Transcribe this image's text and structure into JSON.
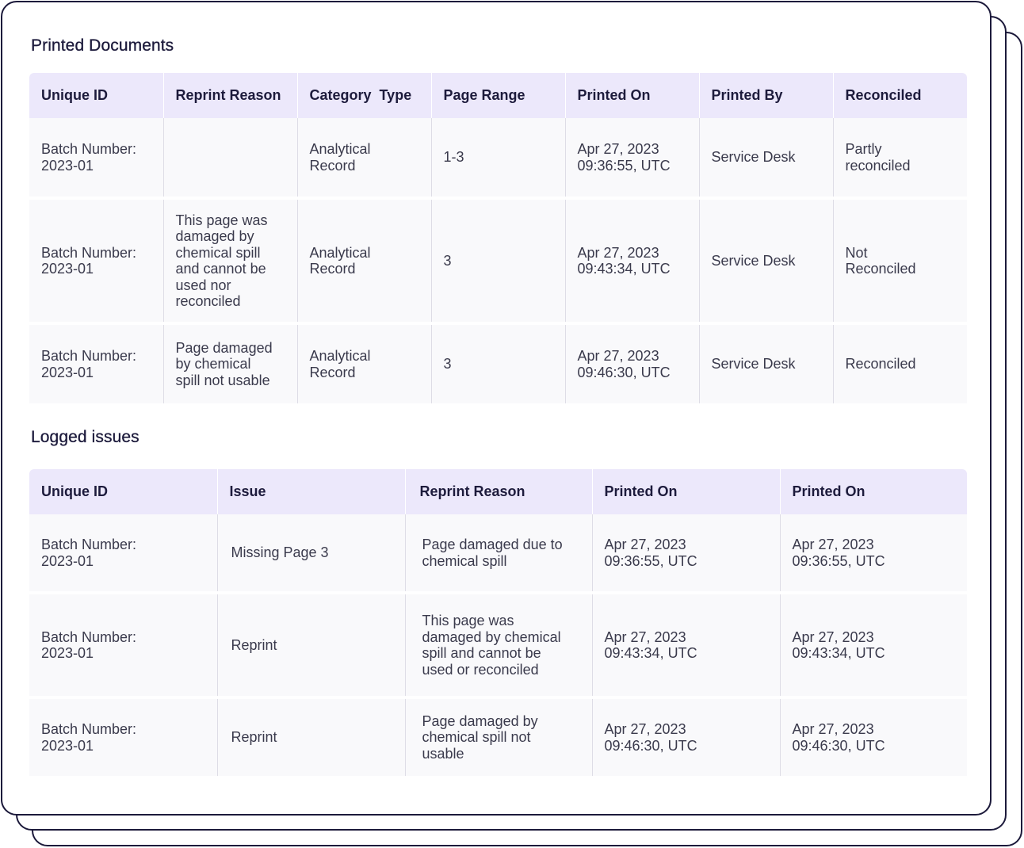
{
  "printed_documents": {
    "title": "Printed Documents",
    "columns": [
      "Unique ID",
      "Reprint Reason",
      "Category  Type",
      "Page Range",
      "Printed On",
      "Printed By",
      "Reconciled"
    ],
    "rows": [
      {
        "unique_id": [
          "Batch Number:",
          "2023-01"
        ],
        "reprint_reason": [],
        "category_type": [
          "Analytical",
          "Record"
        ],
        "page_range": "1-3",
        "printed_on": [
          "Apr 27, 2023",
          "09:36:55, UTC"
        ],
        "printed_by": "Service Desk",
        "reconciled": [
          "Partly",
          "reconciled"
        ]
      },
      {
        "unique_id": [
          "Batch Number:",
          "2023-01"
        ],
        "reprint_reason": [
          "This page was",
          "damaged by",
          "chemical spill",
          "and cannot be",
          "used nor",
          "reconciled"
        ],
        "category_type": [
          "Analytical",
          "Record"
        ],
        "page_range": "3",
        "printed_on": [
          "Apr 27, 2023",
          "09:43:34, UTC"
        ],
        "printed_by": "Service Desk",
        "reconciled": [
          "Not",
          "Reconciled"
        ]
      },
      {
        "unique_id": [
          "Batch Number:",
          "2023-01"
        ],
        "reprint_reason": [
          "Page damaged",
          "by chemical",
          "spill not usable"
        ],
        "category_type": [
          "Analytical",
          "Record"
        ],
        "page_range": "3",
        "printed_on": [
          "Apr 27, 2023",
          "09:46:30, UTC"
        ],
        "printed_by": "Service Desk",
        "reconciled": [
          "Reconciled"
        ]
      }
    ]
  },
  "logged_issues": {
    "title": "Logged issues",
    "columns": [
      "Unique ID",
      "Issue",
      "Reprint Reason",
      "Printed On",
      "Printed On"
    ],
    "rows": [
      {
        "unique_id": [
          "Batch Number:",
          "2023-01"
        ],
        "issue": "Missing Page 3",
        "reprint_reason": [
          "Page damaged due to",
          "chemical spill"
        ],
        "printed_on_1": [
          "Apr 27, 2023",
          "09:36:55, UTC"
        ],
        "printed_on_2": [
          "Apr 27, 2023",
          "09:36:55, UTC"
        ]
      },
      {
        "unique_id": [
          "Batch Number:",
          "2023-01"
        ],
        "issue": "Reprint",
        "reprint_reason": [
          "This page was",
          "damaged by chemical",
          "spill and cannot be",
          "used or reconciled"
        ],
        "printed_on_1": [
          "Apr 27, 2023",
          "09:43:34, UTC"
        ],
        "printed_on_2": [
          "Apr 27, 2023",
          "09:43:34, UTC"
        ]
      },
      {
        "unique_id": [
          "Batch Number:",
          "2023-01"
        ],
        "issue": "Reprint",
        "reprint_reason": [
          "Page damaged by",
          "chemical spill not",
          "usable"
        ],
        "printed_on_1": [
          "Apr 27, 2023",
          "09:46:30, UTC"
        ],
        "printed_on_2": [
          "Apr 27, 2023",
          "09:46:30, UTC"
        ]
      }
    ]
  }
}
